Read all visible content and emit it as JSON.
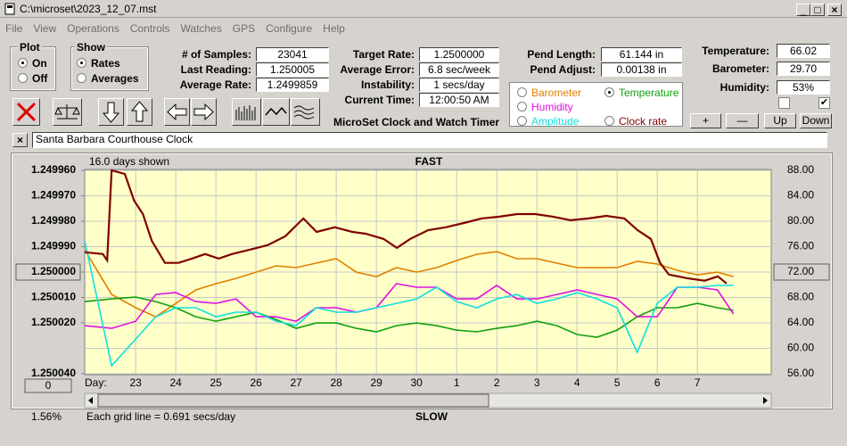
{
  "window": {
    "title": "C:\\microset\\2023_12_07.mst"
  },
  "menu": [
    "File",
    "View",
    "Operations",
    "Controls",
    "Watches",
    "GPS",
    "Configure",
    "Help"
  ],
  "plot": {
    "title": "Plot",
    "options": [
      "On",
      "Off"
    ],
    "selected": 0
  },
  "show": {
    "title": "Show",
    "options": [
      "Rates",
      "Averages"
    ],
    "selected": 0
  },
  "fields": [
    {
      "label": "# of Samples:",
      "value": "23041"
    },
    {
      "label": "Last Reading:",
      "value": "1.250005"
    },
    {
      "label": "Average Rate:",
      "value": "1.2499859"
    },
    {
      "label": "Target Rate:",
      "value": "1.2500000"
    },
    {
      "label": "Average Error:",
      "value": "6.8 sec/week"
    },
    {
      "label": "Instability:",
      "value": "1 secs/day"
    },
    {
      "label": "Current Time:",
      "value": "12:00:50 AM"
    },
    {
      "label": "Pend Length:",
      "value": "61.144 in"
    },
    {
      "label": "Pend Adjust:",
      "value": "0.00138 in"
    },
    {
      "label": "Temperature:",
      "value": "66.02"
    },
    {
      "label": "Barometer:",
      "value": "29.70"
    },
    {
      "label": "Humidity:",
      "value": "53%"
    }
  ],
  "caption": "MicroSet Clock and Watch Timer",
  "buttons": [
    "+",
    "—",
    "Up",
    "Down"
  ],
  "checkboxes": [
    false,
    true
  ],
  "clock_name": "Santa Barbara Courthouse Clock",
  "chart_data": {
    "type": "line",
    "days_shown": "16.0 days shown",
    "top_label": "FAST",
    "bottom_label": "SLOW",
    "x_label": "Day:",
    "grid_note": "Each grid line = 0.691 secs/day",
    "percent": "1.56%",
    "zero_button": "0",
    "aux_selected": 1,
    "highlighted_ytick": 4,
    "highlighted_y2tick": 4,
    "grid": true,
    "xlim": [
      -1.27,
      15.84
    ],
    "xticks": [
      {
        "value": 0,
        "label": "23"
      },
      {
        "value": 1,
        "label": "24"
      },
      {
        "value": 2,
        "label": "25"
      },
      {
        "value": 3,
        "label": "26"
      },
      {
        "value": 4,
        "label": "27"
      },
      {
        "value": 5,
        "label": "28"
      },
      {
        "value": 6,
        "label": "29"
      },
      {
        "value": 7,
        "label": "30"
      },
      {
        "value": 8,
        "label": "1"
      },
      {
        "value": 9,
        "label": "2"
      },
      {
        "value": 10,
        "label": "3"
      },
      {
        "value": 11,
        "label": "4"
      },
      {
        "value": 12,
        "label": "5"
      },
      {
        "value": 13,
        "label": "6"
      },
      {
        "value": 14,
        "label": "7"
      }
    ],
    "ylim": [
      1.25004,
      1.24996
    ],
    "yticks": [
      {
        "value": 1.24996,
        "label": "1.249960"
      },
      {
        "value": 1.24997,
        "label": "1.249970"
      },
      {
        "value": 1.24998,
        "label": "1.249980"
      },
      {
        "value": 1.24999,
        "label": "1.249990"
      },
      {
        "value": 1.25,
        "label": "1.250000"
      },
      {
        "value": 1.25001,
        "label": "1.250010"
      },
      {
        "value": 1.25002,
        "label": "1.250020"
      },
      {
        "value": 1.25004,
        "label": "1.250040"
      }
    ],
    "y2lim": [
      56,
      88
    ],
    "y2ticks": [
      {
        "value": 88,
        "label": "88.00"
      },
      {
        "value": 84,
        "label": "84.00"
      },
      {
        "value": 80,
        "label": "80.00"
      },
      {
        "value": 76,
        "label": "76.00"
      },
      {
        "value": 72,
        "label": "72.00"
      },
      {
        "value": 68,
        "label": "68.00"
      },
      {
        "value": 64,
        "label": "64.00"
      },
      {
        "value": 60,
        "label": "60.00"
      },
      {
        "value": 56,
        "label": "56.00"
      }
    ],
    "x": [
      -1.27,
      -0.6,
      0,
      0.5,
      1,
      1.5,
      2,
      2.5,
      3,
      3.5,
      4,
      4.5,
      5,
      5.5,
      6,
      6.5,
      7,
      7.5,
      8,
      8.5,
      9,
      9.5,
      10,
      10.5,
      11,
      11.5,
      12,
      12.5,
      13,
      13.5,
      14,
      14.5,
      14.9
    ],
    "series": [
      {
        "name": "Barometer",
        "color": "#e08000",
        "axis": "y2",
        "values": [
          75.5,
          68.48,
          66.38,
          64.97,
          67.08,
          69.19,
          70.17,
          71.01,
          71.99,
          72.98,
          72.7,
          73.4,
          74.1,
          71.99,
          71.29,
          72.7,
          71.99,
          72.7,
          73.82,
          74.8,
          75.22,
          74.1,
          74.1,
          73.4,
          72.7,
          72.7,
          72.7,
          73.68,
          73.26,
          72.28,
          71.57,
          71.99,
          71.29
        ]
      },
      {
        "name": "Temperature",
        "color": "#10a010",
        "axis": "y2",
        "values": [
          67.36,
          67.78,
          68.06,
          67.36,
          66.38,
          64.97,
          64.27,
          64.97,
          65.68,
          64.55,
          63.15,
          63.99,
          63.99,
          63.15,
          62.59,
          63.57,
          63.99,
          63.57,
          62.87,
          62.59,
          63.15,
          63.57,
          64.27,
          63.57,
          62.17,
          61.75,
          62.87,
          64.97,
          66.38,
          66.38,
          67.08,
          66.38,
          65.96
        ]
      },
      {
        "name": "Humidity",
        "color": "#e010e0",
        "axis": "y2",
        "values": [
          63.57,
          63.15,
          64.27,
          68.48,
          68.77,
          67.36,
          67.08,
          67.78,
          64.97,
          64.97,
          64.27,
          66.38,
          66.38,
          65.68,
          66.38,
          70.17,
          69.61,
          69.61,
          67.78,
          67.78,
          69.89,
          67.78,
          67.78,
          68.48,
          69.19,
          68.48,
          67.78,
          64.97,
          64.97,
          69.61,
          69.61,
          69.19,
          65.4
        ]
      },
      {
        "name": "Amplitude",
        "color": "#10e0e0",
        "axis": "y2",
        "values": [
          76.91,
          57.26,
          61.46,
          64.97,
          66.38,
          66.38,
          64.97,
          65.68,
          65.68,
          64.27,
          63.57,
          66.38,
          65.68,
          65.68,
          66.38,
          67.08,
          67.78,
          69.61,
          67.36,
          66.38,
          67.78,
          68.48,
          67.08,
          67.78,
          68.77,
          67.78,
          66.38,
          59.36,
          67.08,
          69.61,
          69.61,
          69.89,
          69.89
        ]
      },
      {
        "name": "Clock rate",
        "color": "#800000",
        "axis": "y",
        "x": [
          -1.27,
          -0.82,
          -0.71,
          -0.6,
          -0.27,
          -0.04,
          0.18,
          0.4,
          0.73,
          1.07,
          1.4,
          1.73,
          2.07,
          2.4,
          2.84,
          3.29,
          3.73,
          4.18,
          4.51,
          4.96,
          5.4,
          5.73,
          6.18,
          6.51,
          6.84,
          7.29,
          7.73,
          8.18,
          8.62,
          9.07,
          9.51,
          9.96,
          10.4,
          10.84,
          11.29,
          11.73,
          12.18,
          12.51,
          12.84,
          13.07,
          13.29,
          13.73,
          14.18,
          14.51,
          14.73
        ],
        "values": [
          1.2499922,
          1.2499929,
          1.2499954,
          1.24996,
          1.2499614,
          1.2499719,
          1.2499772,
          1.2499877,
          1.2499964,
          1.2499964,
          1.2499947,
          1.2499929,
          1.2499947,
          1.2499929,
          1.2499912,
          1.2499894,
          1.2499859,
          1.2499789,
          1.2499842,
          1.2499824,
          1.2499842,
          1.2499849,
          1.249987,
          1.2499905,
          1.249987,
          1.2499835,
          1.2499824,
          1.2499807,
          1.2499789,
          1.2499782,
          1.2499772,
          1.2499772,
          1.2499782,
          1.2499796,
          1.2499789,
          1.2499779,
          1.2499789,
          1.2499835,
          1.249987,
          1.2499964,
          1.250001,
          1.2500024,
          1.2500034,
          1.2500017,
          1.2500045
        ]
      }
    ]
  }
}
